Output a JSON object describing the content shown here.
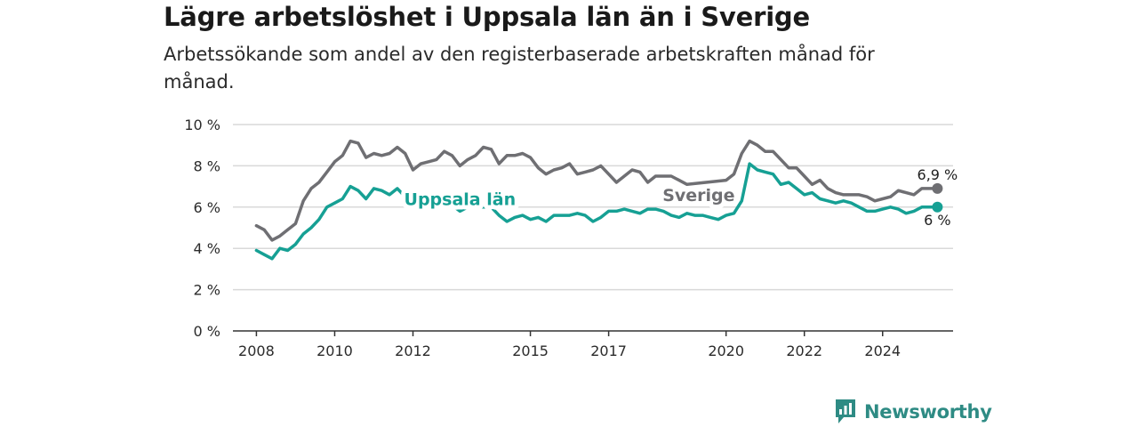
{
  "title": "Lägre arbetslöshet i Uppsala län än i Sverige",
  "subtitle": "Arbetssökande som andel av den registerbaserade arbetskraften månad för månad.",
  "brand": {
    "name": "Newsworthy",
    "icon": "newsworthy-logo-icon"
  },
  "colors": {
    "sverige": "#6f6f73",
    "uppsala": "#16a094",
    "grid": "#d9d9d9",
    "axis": "#333333",
    "brand": "#2e8b84"
  },
  "chart_data": {
    "type": "line",
    "ylim": [
      0,
      10
    ],
    "y_ticks": [
      0,
      2,
      4,
      6,
      8,
      10
    ],
    "y_tick_labels": [
      "0 %",
      "2 %",
      "4 %",
      "6 %",
      "8 %",
      "10 %"
    ],
    "x_range": [
      2007.4,
      2025.8
    ],
    "x_ticks": [
      2008,
      2010,
      2012,
      2015,
      2017,
      2020,
      2022,
      2024
    ],
    "x_tick_labels": [
      "2008",
      "2010",
      "2012",
      "2015",
      "2017",
      "2020",
      "2022",
      "2024"
    ],
    "grid": true,
    "end_labels": {
      "sverige": "6,9 %",
      "uppsala": "6 %"
    },
    "series": [
      {
        "key": "sverige",
        "name": "Sverige",
        "points": [
          [
            2008.0,
            5.1
          ],
          [
            2008.2,
            4.9
          ],
          [
            2008.4,
            4.4
          ],
          [
            2008.6,
            4.6
          ],
          [
            2008.8,
            4.9
          ],
          [
            2009.0,
            5.2
          ],
          [
            2009.2,
            6.3
          ],
          [
            2009.4,
            6.9
          ],
          [
            2009.6,
            7.2
          ],
          [
            2009.8,
            7.7
          ],
          [
            2010.0,
            8.2
          ],
          [
            2010.2,
            8.5
          ],
          [
            2010.4,
            9.2
          ],
          [
            2010.6,
            9.1
          ],
          [
            2010.8,
            8.4
          ],
          [
            2011.0,
            8.6
          ],
          [
            2011.2,
            8.5
          ],
          [
            2011.4,
            8.6
          ],
          [
            2011.6,
            8.9
          ],
          [
            2011.8,
            8.6
          ],
          [
            2012.0,
            7.8
          ],
          [
            2012.2,
            8.1
          ],
          [
            2012.4,
            8.2
          ],
          [
            2012.6,
            8.3
          ],
          [
            2012.8,
            8.7
          ],
          [
            2013.0,
            8.5
          ],
          [
            2013.2,
            8.0
          ],
          [
            2013.4,
            8.3
          ],
          [
            2013.6,
            8.5
          ],
          [
            2013.8,
            8.9
          ],
          [
            2014.0,
            8.8
          ],
          [
            2014.2,
            8.1
          ],
          [
            2014.4,
            8.5
          ],
          [
            2014.6,
            8.5
          ],
          [
            2014.8,
            8.6
          ],
          [
            2015.0,
            8.4
          ],
          [
            2015.2,
            7.9
          ],
          [
            2015.4,
            7.6
          ],
          [
            2015.6,
            7.8
          ],
          [
            2015.8,
            7.9
          ],
          [
            2016.0,
            8.1
          ],
          [
            2016.2,
            7.6
          ],
          [
            2016.4,
            7.7
          ],
          [
            2016.6,
            7.8
          ],
          [
            2016.8,
            8.0
          ],
          [
            2017.0,
            7.6
          ],
          [
            2017.2,
            7.2
          ],
          [
            2017.4,
            7.5
          ],
          [
            2017.6,
            7.8
          ],
          [
            2017.8,
            7.7
          ],
          [
            2018.0,
            7.2
          ],
          [
            2018.2,
            7.5
          ],
          [
            2018.4,
            7.5
          ],
          [
            2018.6,
            7.5
          ],
          [
            2018.8,
            7.3
          ],
          [
            2019.0,
            7.1
          ],
          [
            2020.0,
            7.3
          ],
          [
            2020.2,
            7.6
          ],
          [
            2020.4,
            8.6
          ],
          [
            2020.6,
            9.2
          ],
          [
            2020.8,
            9.0
          ],
          [
            2021.0,
            8.7
          ],
          [
            2021.2,
            8.7
          ],
          [
            2021.4,
            8.3
          ],
          [
            2021.6,
            7.9
          ],
          [
            2021.8,
            7.9
          ],
          [
            2022.0,
            7.5
          ],
          [
            2022.2,
            7.1
          ],
          [
            2022.4,
            7.3
          ],
          [
            2022.6,
            6.9
          ],
          [
            2022.8,
            6.7
          ],
          [
            2023.0,
            6.6
          ],
          [
            2023.2,
            6.6
          ],
          [
            2023.4,
            6.6
          ],
          [
            2023.6,
            6.5
          ],
          [
            2023.8,
            6.3
          ],
          [
            2024.0,
            6.4
          ],
          [
            2024.2,
            6.5
          ],
          [
            2024.4,
            6.8
          ],
          [
            2024.6,
            6.7
          ],
          [
            2024.8,
            6.6
          ],
          [
            2025.0,
            6.9
          ],
          [
            2025.4,
            6.9
          ]
        ]
      },
      {
        "key": "uppsala",
        "name": "Uppsala län",
        "points": [
          [
            2008.0,
            3.9
          ],
          [
            2008.2,
            3.7
          ],
          [
            2008.4,
            3.5
          ],
          [
            2008.6,
            4.0
          ],
          [
            2008.8,
            3.9
          ],
          [
            2009.0,
            4.2
          ],
          [
            2009.2,
            4.7
          ],
          [
            2009.4,
            5.0
          ],
          [
            2009.6,
            5.4
          ],
          [
            2009.8,
            6.0
          ],
          [
            2010.0,
            6.2
          ],
          [
            2010.2,
            6.4
          ],
          [
            2010.4,
            7.0
          ],
          [
            2010.6,
            6.8
          ],
          [
            2010.8,
            6.4
          ],
          [
            2011.0,
            6.9
          ],
          [
            2011.2,
            6.8
          ],
          [
            2011.4,
            6.6
          ],
          [
            2011.6,
            6.9
          ],
          [
            2011.8,
            6.5
          ],
          [
            2012.0,
            6.0
          ],
          [
            2012.2,
            6.3
          ],
          [
            2012.4,
            6.1
          ],
          [
            2012.6,
            6.2
          ],
          [
            2012.8,
            6.2
          ],
          [
            2013.0,
            6.1
          ],
          [
            2013.2,
            5.8
          ],
          [
            2013.4,
            6.0
          ],
          [
            2014.0,
            6.0
          ],
          [
            2014.2,
            5.6
          ],
          [
            2014.4,
            5.3
          ],
          [
            2014.6,
            5.5
          ],
          [
            2014.8,
            5.6
          ],
          [
            2015.0,
            5.4
          ],
          [
            2015.2,
            5.5
          ],
          [
            2015.4,
            5.3
          ],
          [
            2015.6,
            5.6
          ],
          [
            2015.8,
            5.6
          ],
          [
            2016.0,
            5.6
          ],
          [
            2016.2,
            5.7
          ],
          [
            2016.4,
            5.6
          ],
          [
            2016.6,
            5.3
          ],
          [
            2016.8,
            5.5
          ],
          [
            2017.0,
            5.8
          ],
          [
            2017.2,
            5.8
          ],
          [
            2017.4,
            5.9
          ],
          [
            2017.6,
            5.8
          ],
          [
            2017.8,
            5.7
          ],
          [
            2018.0,
            5.9
          ],
          [
            2018.2,
            5.9
          ],
          [
            2018.4,
            5.8
          ],
          [
            2018.6,
            5.6
          ],
          [
            2018.8,
            5.5
          ],
          [
            2019.0,
            5.7
          ],
          [
            2019.2,
            5.6
          ],
          [
            2019.4,
            5.6
          ],
          [
            2019.6,
            5.5
          ],
          [
            2019.8,
            5.4
          ],
          [
            2020.0,
            5.6
          ],
          [
            2020.2,
            5.7
          ],
          [
            2020.4,
            6.3
          ],
          [
            2020.6,
            8.1
          ],
          [
            2020.8,
            7.8
          ],
          [
            2021.0,
            7.7
          ],
          [
            2021.2,
            7.6
          ],
          [
            2021.4,
            7.1
          ],
          [
            2021.6,
            7.2
          ],
          [
            2021.8,
            6.9
          ],
          [
            2022.0,
            6.6
          ],
          [
            2022.2,
            6.7
          ],
          [
            2022.4,
            6.4
          ],
          [
            2022.6,
            6.3
          ],
          [
            2022.8,
            6.2
          ],
          [
            2023.0,
            6.3
          ],
          [
            2023.2,
            6.2
          ],
          [
            2023.4,
            6.0
          ],
          [
            2023.6,
            5.8
          ],
          [
            2023.8,
            5.8
          ],
          [
            2024.0,
            5.9
          ],
          [
            2024.2,
            6.0
          ],
          [
            2024.4,
            5.9
          ],
          [
            2024.6,
            5.7
          ],
          [
            2024.8,
            5.8
          ],
          [
            2025.0,
            6.0
          ],
          [
            2025.4,
            6.0
          ]
        ]
      }
    ]
  }
}
